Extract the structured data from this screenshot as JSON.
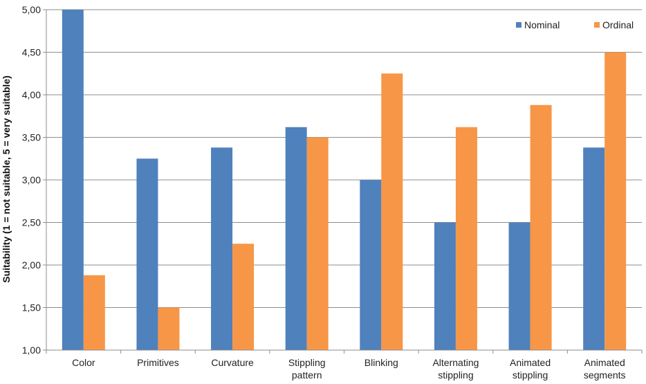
{
  "chart_data": {
    "type": "bar",
    "categories": [
      [
        "Color"
      ],
      [
        "Primitives"
      ],
      [
        "Curvature"
      ],
      [
        "Stippling",
        "pattern"
      ],
      [
        "Blinking"
      ],
      [
        "Alternating",
        "stippling"
      ],
      [
        "Animated",
        "stippling"
      ],
      [
        "Animated",
        "segments"
      ]
    ],
    "series": [
      {
        "name": "Nominal",
        "color": "#4F81BD",
        "values": [
          5.0,
          3.25,
          3.38,
          3.62,
          3.0,
          2.5,
          2.5,
          3.38
        ]
      },
      {
        "name": "Ordinal",
        "color": "#F79646",
        "values": [
          1.88,
          1.5,
          2.25,
          3.5,
          4.25,
          3.62,
          3.88,
          4.5
        ]
      }
    ],
    "ylabel": "Suitability (1 = not suitable, 5 = very suitable)",
    "ylim": [
      1.0,
      5.0
    ],
    "yticks": [
      "1,00",
      "1,50",
      "2,00",
      "2,50",
      "3,00",
      "3,50",
      "4,00",
      "4,50",
      "5,00"
    ],
    "grid": true,
    "legend_position": "top-right"
  }
}
